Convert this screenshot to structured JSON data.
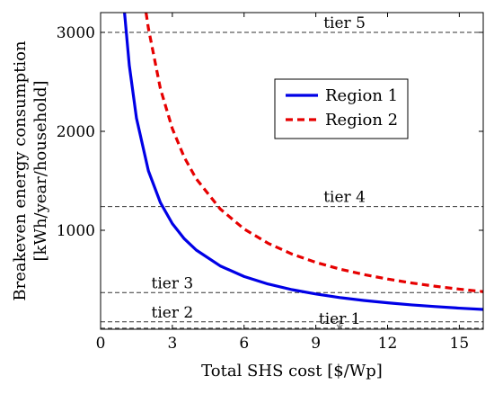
{
  "chart_data": {
    "type": "line",
    "xlabel": "Total SHS cost [$/Wp]",
    "ylabel_line1": "Breakeven energy consumption",
    "ylabel_line2": "[kWh/year/household]",
    "xlim": [
      0,
      16
    ],
    "ylim": [
      0,
      3200
    ],
    "x_ticks": [
      0,
      3,
      6,
      9,
      12,
      15
    ],
    "y_ticks": [
      1000,
      2000,
      3000
    ],
    "grid": false,
    "legend_position": "upper-right",
    "series": [
      {
        "name": "Region 1",
        "color": "#0000e6",
        "style": "solid",
        "x": [
          1.0,
          1.2,
          1.5,
          2.0,
          2.5,
          3.0,
          3.5,
          4,
          5,
          6,
          7,
          8,
          9,
          10,
          11,
          12,
          13,
          14,
          15,
          16
        ],
        "values": [
          3200,
          2667,
          2133,
          1600,
          1280,
          1067,
          914,
          800,
          640,
          533,
          457,
          400,
          356,
          320,
          291,
          267,
          246,
          229,
          213,
          200
        ]
      },
      {
        "name": "Region 2",
        "color": "#e60000",
        "style": "dashed",
        "x": [
          1.9,
          2.0,
          2.5,
          3.0,
          3.5,
          4,
          5,
          6,
          7,
          8,
          9,
          10,
          11,
          12,
          13,
          14,
          15,
          16
        ],
        "values": [
          3200,
          3040,
          2432,
          2027,
          1737,
          1520,
          1216,
          1013,
          869,
          760,
          676,
          608,
          553,
          507,
          468,
          434,
          405,
          380
        ]
      }
    ],
    "reference_lines": [
      {
        "label": "tier 5",
        "y": 3000,
        "label_x": 10.2
      },
      {
        "label": "tier 4",
        "y": 1240,
        "label_x": 10.2
      },
      {
        "label": "tier 3",
        "y": 370,
        "label_x": 3.0
      },
      {
        "label": "tier 2",
        "y": 75,
        "label_x": 3.0
      },
      {
        "label": "tier 1",
        "y": 10,
        "label_x": 10.0
      }
    ],
    "legend": [
      {
        "label": "Region 1",
        "color": "#0000e6",
        "style": "solid"
      },
      {
        "label": "Region 2",
        "color": "#e60000",
        "style": "dashed"
      }
    ]
  }
}
